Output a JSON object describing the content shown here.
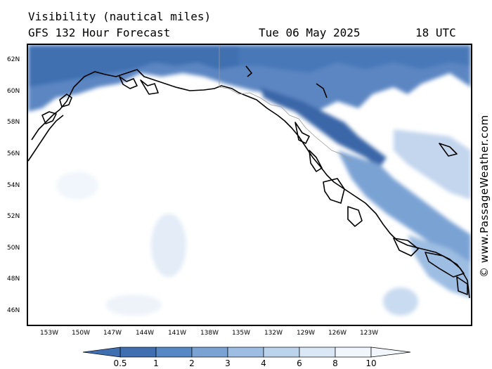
{
  "header": {
    "title": "Visibility (nautical miles)",
    "model": "GFS 132 Hour Forecast",
    "date": "Tue 06 May 2025",
    "time": "18 UTC"
  },
  "axes": {
    "lat_labels": [
      "62N",
      "60N",
      "58N",
      "56N",
      "54N",
      "52N",
      "50N",
      "48N",
      "46N"
    ],
    "lon_labels": [
      "153W",
      "150W",
      "147W",
      "144W",
      "141W",
      "138W",
      "135W",
      "132W",
      "129W",
      "126W",
      "123W"
    ]
  },
  "credit": "© www.PassageWeather.com",
  "colorbar": {
    "labels": [
      "0.5",
      "1",
      "2",
      "3",
      "4",
      "6",
      "8",
      "10"
    ],
    "colors": [
      "#3f6fb0",
      "#5588c4",
      "#7aa3d4",
      "#9dbde2",
      "#bcd3ec",
      "#dae7f5",
      "#f1f6fc"
    ]
  },
  "colors": {
    "land_fill": "#ffffff",
    "coast": "#000000",
    "border": "#9a9a9a"
  }
}
